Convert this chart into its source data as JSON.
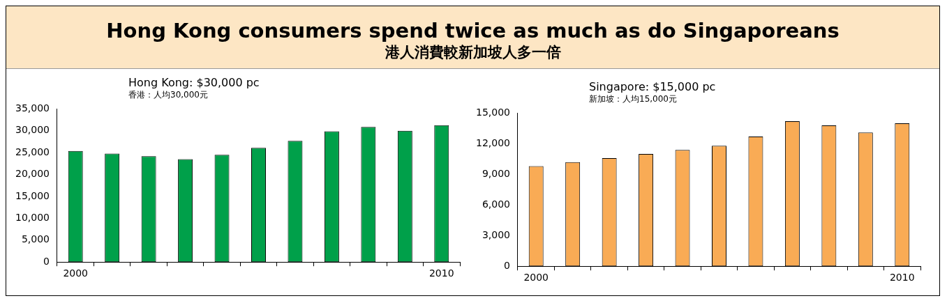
{
  "chart_data": [
    {
      "type": "bar",
      "title": "Hong Kong: $30,000 pc",
      "subtitle": "香港：人均30,000元",
      "annotations": [
        "Hong Kong consumers spend twice as much as do Singaporeans",
        "港人消費較新加坡人多一倍"
      ],
      "categories": [
        "2000",
        null,
        null,
        null,
        null,
        null,
        null,
        null,
        null,
        null,
        "2010"
      ],
      "values": [
        25400,
        24800,
        24200,
        23500,
        24500,
        26100,
        27700,
        29900,
        30900,
        30000,
        31300
      ],
      "color": "#00a04a",
      "ylim": [
        0,
        35000
      ],
      "yticks": [
        0,
        {
          "value": 5000,
          "label": "5,000"
        },
        {
          "value": 10000,
          "label": "10,000"
        },
        {
          "value": 15000,
          "label": "15,000"
        },
        {
          "value": 20000,
          "label": "20,000"
        },
        {
          "value": 25000,
          "label": "25,000"
        },
        {
          "value": 30000,
          "label": "30,000"
        },
        {
          "value": 35000,
          "label": "35,000"
        }
      ],
      "grid": false,
      "legend": false
    },
    {
      "type": "bar",
      "title": "Singapore: $15,000 pc",
      "subtitle": "新加坡：人均15,000元",
      "categories": [
        "2000",
        null,
        null,
        null,
        null,
        null,
        null,
        null,
        null,
        null,
        "2010"
      ],
      "values": [
        9800,
        10200,
        10600,
        11000,
        11400,
        11800,
        12700,
        14200,
        13800,
        13100,
        14000
      ],
      "color": "#f9ab55",
      "ylim": [
        0,
        15000
      ],
      "yticks": [
        0,
        {
          "value": 3000,
          "label": "3,000"
        },
        {
          "value": 6000,
          "label": "6,000"
        },
        {
          "value": 9000,
          "label": "9,000"
        },
        {
          "value": 12000,
          "label": "12,000"
        },
        {
          "value": 15000,
          "label": "15,000"
        }
      ],
      "grid": false,
      "legend": false
    }
  ]
}
